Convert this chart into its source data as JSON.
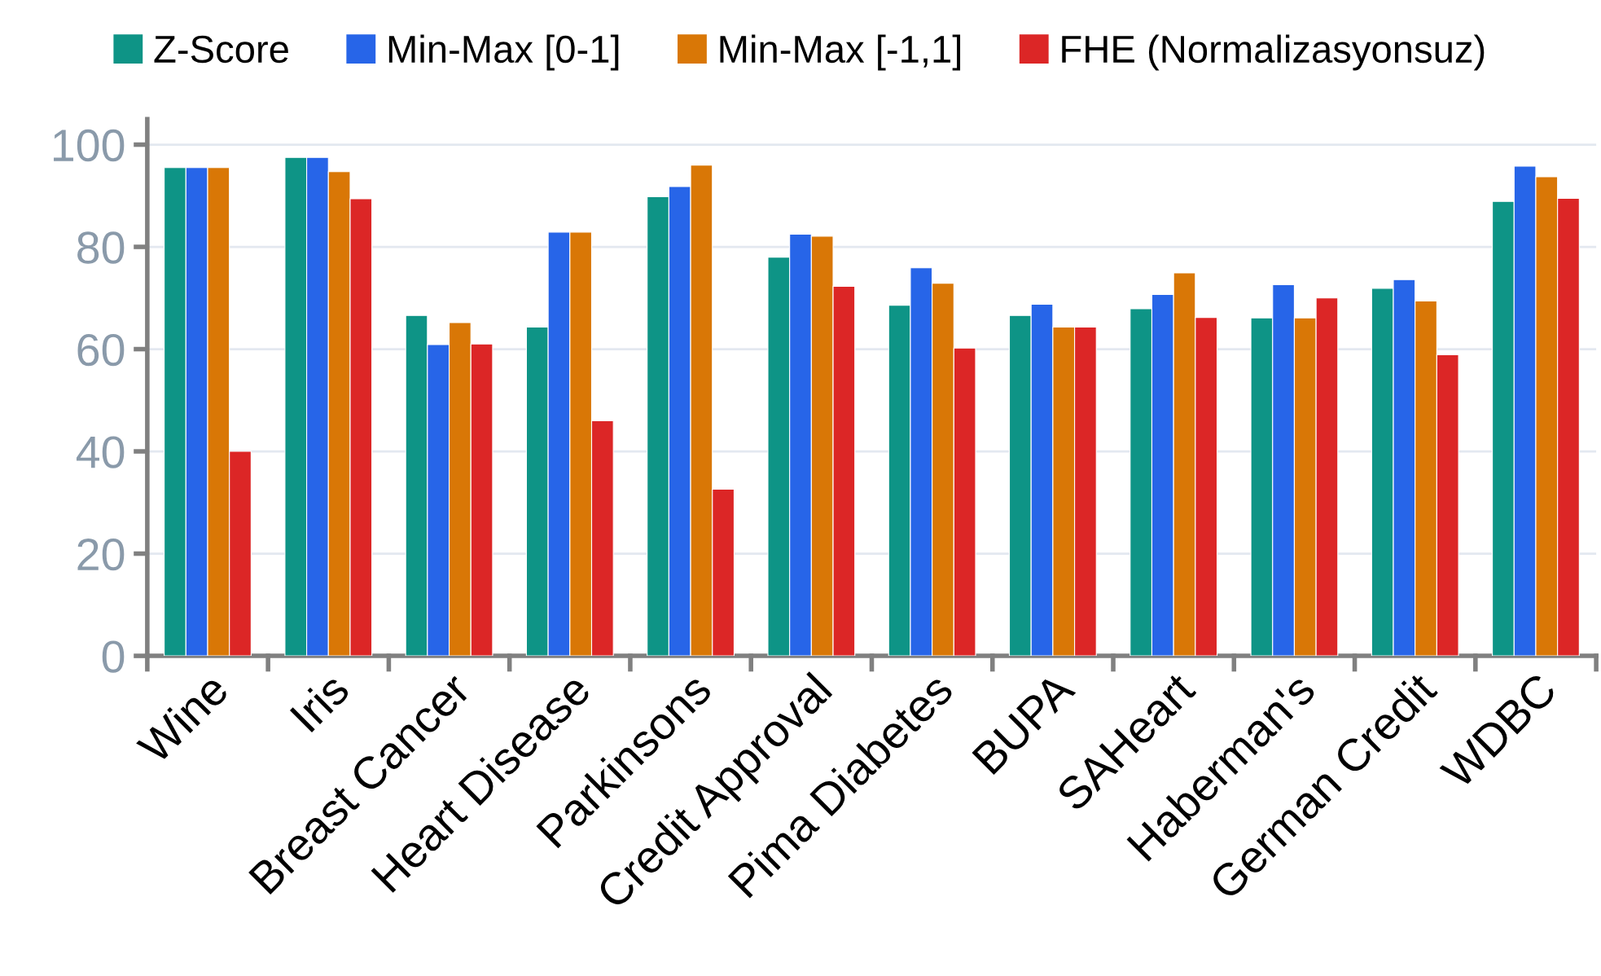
{
  "chart_data": {
    "type": "bar",
    "categories": [
      "Wine",
      "Iris",
      "Breast Cancer",
      "Heart Disease",
      "Parkinsons",
      "Credit Approval",
      "Pima Diabetes",
      "BUPA",
      "SAHeart",
      "Haberman's",
      "German Credit",
      "WDBC"
    ],
    "series": [
      {
        "name": "Z-Score",
        "color": "#0e9486",
        "values": [
          95.5,
          97.5,
          66.6,
          64.3,
          89.8,
          78,
          68.6,
          66.6,
          67.9,
          66.1,
          71.9,
          88.9
        ]
      },
      {
        "name": "Min-Max [0-1]",
        "color": "#2765e8",
        "values": [
          95.5,
          97.5,
          60.9,
          82.9,
          91.8,
          82.5,
          75.9,
          68.8,
          70.7,
          72.6,
          73.6,
          95.8
        ]
      },
      {
        "name": "Min-Max [-1,1]",
        "color": "#d97706",
        "values": [
          95.5,
          94.7,
          65.2,
          82.9,
          96,
          82.1,
          72.9,
          64.3,
          74.9,
          66.1,
          69.4,
          93.7
        ]
      },
      {
        "name": "FHE (Normalizasyonsuz)",
        "color": "#dc2626",
        "values": [
          40,
          89.4,
          61,
          46,
          32.6,
          72.3,
          60.2,
          64.3,
          66.2,
          70,
          58.9,
          89.5
        ]
      }
    ],
    "ylim": [
      0,
      105
    ],
    "yticks": [
      0,
      20,
      40,
      60,
      80,
      100
    ],
    "grid": "y",
    "legend": "top"
  }
}
